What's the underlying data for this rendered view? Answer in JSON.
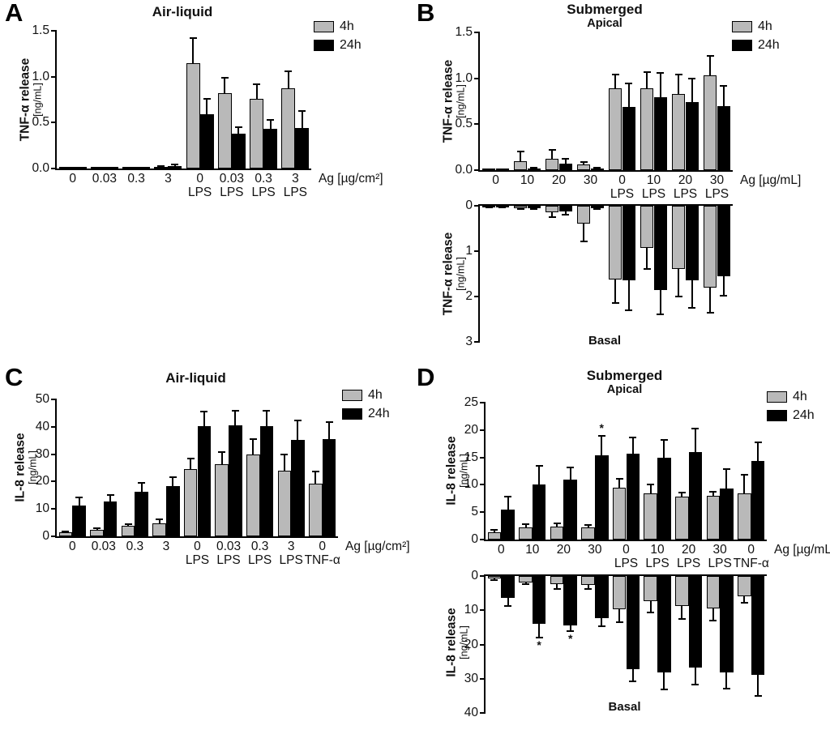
{
  "figure": {
    "background": "#ffffff",
    "axis_color": "#000000"
  },
  "panels": [
    {
      "letter": "A",
      "title": "Air-liquid",
      "subtitle": "",
      "legend": [
        {
          "label": "4h",
          "color": "#b9b9b9"
        },
        {
          "label": "24h",
          "color": "#000000"
        }
      ]
    },
    {
      "letter": "B",
      "title": "Submerged",
      "subtitle": "Apical",
      "legend": [
        {
          "label": "4h",
          "color": "#b9b9b9"
        },
        {
          "label": "24h",
          "color": "#000000"
        }
      ]
    },
    {
      "letter": "C",
      "title": "Air-liquid",
      "subtitle": "",
      "legend": [
        {
          "label": "4h",
          "color": "#b9b9b9"
        },
        {
          "label": "24h",
          "color": "#000000"
        }
      ]
    },
    {
      "letter": "D",
      "title": "Submerged",
      "subtitle": "Apical",
      "legend": [
        {
          "label": "4h",
          "color": "#b9b9b9"
        },
        {
          "label": "24h",
          "color": "#000000"
        }
      ]
    }
  ],
  "chart_data": [
    {
      "id": "A-air-liquid-tnf",
      "panel": "A",
      "type": "bar",
      "orientation": "up",
      "ylabel": "TNF-α release",
      "ylabel_unit": "[ng/mL]",
      "ylim": [
        0,
        1.5
      ],
      "yticks": [
        "0.0",
        "0.5",
        "1.0",
        "1.5"
      ],
      "grid": false,
      "legend_position": "top-right",
      "show_xlabels": true,
      "xlabel_end": "Ag [µg/cm²]",
      "categories": [
        "0",
        "0.03",
        "0.3",
        "3",
        "0\nLPS",
        "0.03\nLPS",
        "0.3\nLPS",
        "3\nLPS"
      ],
      "series": [
        {
          "name": "4h",
          "color": "#b9b9b9",
          "values": [
            0.01,
            0.01,
            0.01,
            0.015,
            1.15,
            0.82,
            0.76,
            0.87
          ],
          "errors": [
            0,
            0,
            0,
            0.005,
            0.27,
            0.17,
            0.16,
            0.19
          ]
        },
        {
          "name": "24h",
          "color": "#000000",
          "values": [
            0.01,
            0.015,
            0.01,
            0.03,
            0.59,
            0.38,
            0.43,
            0.44
          ],
          "errors": [
            0,
            0,
            0,
            0.012,
            0.17,
            0.07,
            0.1,
            0.19
          ]
        }
      ],
      "annotations": []
    },
    {
      "id": "B-submerged-apical-tnf",
      "panel": "B",
      "region": "Apical",
      "type": "bar",
      "orientation": "up",
      "ylabel": "TNF-α release",
      "ylabel_unit": "[ng/mL]",
      "ylim": [
        0,
        1.5
      ],
      "yticks": [
        "0.0",
        "0.5",
        "1.0",
        "1.5"
      ],
      "grid": false,
      "legend_position": "top-right",
      "show_xlabels": true,
      "xlabel_end": "Ag [µg/mL]",
      "categories": [
        "0",
        "10",
        "20",
        "30",
        "0\nLPS",
        "10\nLPS",
        "20\nLPS",
        "30\nLPS"
      ],
      "series": [
        {
          "name": "4h",
          "color": "#b9b9b9",
          "values": [
            0.01,
            0.1,
            0.12,
            0.06,
            0.89,
            0.89,
            0.83,
            1.03
          ],
          "errors": [
            0,
            0.1,
            0.1,
            0.03,
            0.15,
            0.18,
            0.21,
            0.21
          ]
        },
        {
          "name": "24h",
          "color": "#000000",
          "values": [
            0.01,
            0.02,
            0.07,
            0.015,
            0.69,
            0.79,
            0.74,
            0.7
          ],
          "errors": [
            0,
            0.01,
            0.05,
            0.005,
            0.25,
            0.27,
            0.26,
            0.22
          ]
        }
      ],
      "annotations": []
    },
    {
      "id": "B-submerged-basal-tnf",
      "panel": "B",
      "region": "Basal",
      "type": "bar",
      "orientation": "down",
      "ylabel": "TNF-α release",
      "ylabel_unit": "[ng/mL]",
      "footer_label": "Basal",
      "ylim": [
        0,
        3
      ],
      "yticks": [
        "0",
        "1",
        "2",
        "3"
      ],
      "grid": false,
      "show_xlabels": false,
      "categories": [
        "0",
        "10",
        "20",
        "30",
        "0\nLPS",
        "10\nLPS",
        "20\nLPS",
        "30\nLPS"
      ],
      "series": [
        {
          "name": "4h",
          "color": "#b9b9b9",
          "values": [
            0.02,
            0.05,
            0.15,
            0.4,
            1.62,
            0.93,
            1.4,
            1.8
          ],
          "errors": [
            0.005,
            0.02,
            0.1,
            0.38,
            0.53,
            0.47,
            0.6,
            0.55
          ]
        },
        {
          "name": "24h",
          "color": "#000000",
          "values": [
            0.02,
            0.06,
            0.13,
            0.05,
            1.65,
            1.85,
            1.65,
            1.55
          ],
          "errors": [
            0.005,
            0.02,
            0.07,
            0.02,
            0.65,
            0.55,
            0.6,
            0.43
          ]
        }
      ],
      "annotations": []
    },
    {
      "id": "C-air-liquid-il8",
      "panel": "C",
      "type": "bar",
      "orientation": "up",
      "ylabel": "IL-8 release",
      "ylabel_unit": "[ng/mL]",
      "ylim": [
        0,
        50
      ],
      "yticks": [
        "0",
        "10",
        "20",
        "30",
        "40",
        "50"
      ],
      "grid": false,
      "legend_position": "top-right",
      "show_xlabels": true,
      "xlabel_end": "Ag [µg/cm²]",
      "categories": [
        "0",
        "0.03",
        "0.3",
        "3",
        "0\nLPS",
        "0.03\nLPS",
        "0.3\nLPS",
        "3\nLPS",
        "0\nTNF-α"
      ],
      "series": [
        {
          "name": "4h",
          "color": "#b9b9b9",
          "values": [
            1.5,
            2.3,
            3.8,
            4.8,
            24.5,
            26.3,
            30.0,
            24.0,
            19.2
          ],
          "errors": [
            0.4,
            0.6,
            0.7,
            1.3,
            4.0,
            4.5,
            5.5,
            5.8,
            4.5
          ]
        },
        {
          "name": "24h",
          "color": "#000000",
          "values": [
            11.2,
            12.7,
            16.2,
            18.3,
            40.3,
            40.5,
            40.2,
            35.2,
            35.5
          ],
          "errors": [
            3.0,
            2.3,
            3.4,
            3.4,
            5.2,
            5.3,
            5.8,
            7.1,
            6.3
          ]
        }
      ],
      "annotations": []
    },
    {
      "id": "D-submerged-apical-il8",
      "panel": "D",
      "region": "Apical",
      "type": "bar",
      "orientation": "up",
      "ylabel": "IL-8 release",
      "ylabel_unit": "[ng/mL]",
      "ylim": [
        0,
        25
      ],
      "yticks": [
        "0",
        "5",
        "10",
        "15",
        "20",
        "25"
      ],
      "grid": false,
      "legend_position": "top-right",
      "show_xlabels": true,
      "xlabel_end": "Ag [µg/mL]",
      "categories": [
        "0",
        "10",
        "20",
        "30",
        "0\nLPS",
        "10\nLPS",
        "20\nLPS",
        "30\nLPS",
        "0\nTNF-α"
      ],
      "series": [
        {
          "name": "4h",
          "color": "#b9b9b9",
          "values": [
            1.3,
            2.2,
            2.3,
            2.2,
            9.5,
            8.4,
            7.8,
            8.0,
            8.5
          ],
          "errors": [
            0.5,
            0.6,
            0.6,
            0.5,
            1.6,
            1.7,
            0.8,
            0.8,
            3.4
          ]
        },
        {
          "name": "24h",
          "color": "#000000",
          "values": [
            5.5,
            10.0,
            10.9,
            15.4,
            15.7,
            15.0,
            16.0,
            9.3,
            14.4
          ],
          "errors": [
            2.4,
            3.4,
            2.3,
            3.6,
            3.0,
            3.2,
            4.2,
            3.6,
            3.3
          ]
        }
      ],
      "annotations": [
        {
          "category": 3,
          "series": 1,
          "text": "*"
        }
      ]
    },
    {
      "id": "D-submerged-basal-il8",
      "panel": "D",
      "region": "Basal",
      "type": "bar",
      "orientation": "down",
      "ylabel": "IL-8 release",
      "ylabel_unit": "[ng/mL]",
      "footer_label": "Basal",
      "ylim": [
        0,
        40
      ],
      "yticks": [
        "0",
        "10",
        "20",
        "30",
        "40"
      ],
      "grid": false,
      "show_xlabels": false,
      "categories": [
        "0",
        "10",
        "20",
        "30",
        "0\nLPS",
        "10\nLPS",
        "20\nLPS",
        "30\nLPS",
        "0\nTNF-α"
      ],
      "series": [
        {
          "name": "4h",
          "color": "#b9b9b9",
          "values": [
            0.8,
            1.8,
            2.3,
            2.5,
            9.6,
            7.4,
            8.7,
            9.4,
            5.9
          ],
          "errors": [
            0.4,
            0.6,
            1.4,
            1.3,
            3.9,
            3.2,
            3.8,
            3.5,
            1.9
          ]
        },
        {
          "name": "24h",
          "color": "#000000",
          "values": [
            6.5,
            14.0,
            14.5,
            12.2,
            27.2,
            28.2,
            26.8,
            28.2,
            28.8
          ],
          "errors": [
            2.3,
            4.1,
            1.5,
            2.5,
            3.5,
            4.9,
            4.9,
            4.7,
            6.2
          ]
        }
      ],
      "annotations": [
        {
          "category": 1,
          "series": 1,
          "text": "*"
        },
        {
          "category": 2,
          "series": 1,
          "text": "*"
        }
      ]
    }
  ]
}
